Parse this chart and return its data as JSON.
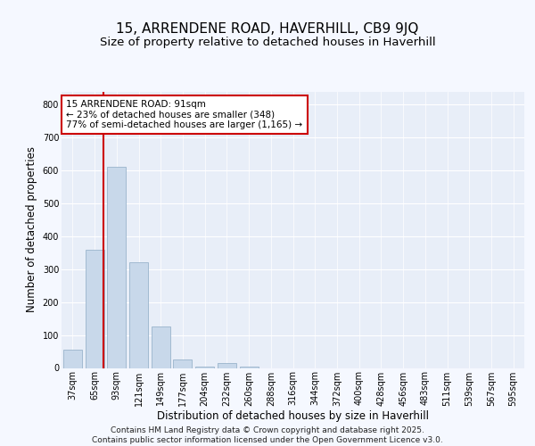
{
  "title": "15, ARRENDENE ROAD, HAVERHILL, CB9 9JQ",
  "subtitle": "Size of property relative to detached houses in Haverhill",
  "xlabel": "Distribution of detached houses by size in Haverhill",
  "ylabel": "Number of detached properties",
  "bar_labels": [
    "37sqm",
    "65sqm",
    "93sqm",
    "121sqm",
    "149sqm",
    "177sqm",
    "204sqm",
    "232sqm",
    "260sqm",
    "288sqm",
    "316sqm",
    "344sqm",
    "372sqm",
    "400sqm",
    "428sqm",
    "456sqm",
    "483sqm",
    "511sqm",
    "539sqm",
    "567sqm",
    "595sqm"
  ],
  "bar_values": [
    55,
    360,
    610,
    320,
    125,
    25,
    5,
    15,
    5,
    0,
    0,
    0,
    0,
    0,
    0,
    0,
    0,
    0,
    0,
    0,
    0
  ],
  "bar_color": "#c8d8ea",
  "bar_edge_color": "#9ab4cc",
  "vline_x": 1.42,
  "vline_color": "#cc0000",
  "annotation_text": "15 ARRENDENE ROAD: 91sqm\n← 23% of detached houses are smaller (348)\n77% of semi-detached houses are larger (1,165) →",
  "annotation_box_facecolor": "#ffffff",
  "annotation_box_edgecolor": "#cc0000",
  "ylim": [
    0,
    840
  ],
  "yticks": [
    0,
    100,
    200,
    300,
    400,
    500,
    600,
    700,
    800
  ],
  "fig_background": "#f5f8ff",
  "plot_background": "#e8eef8",
  "grid_color": "#ffffff",
  "title_fontsize": 11,
  "subtitle_fontsize": 9.5,
  "xlabel_fontsize": 8.5,
  "ylabel_fontsize": 8.5,
  "tick_fontsize": 7,
  "annot_fontsize": 7.5,
  "footer": "Contains HM Land Registry data © Crown copyright and database right 2025.\nContains public sector information licensed under the Open Government Licence v3.0."
}
